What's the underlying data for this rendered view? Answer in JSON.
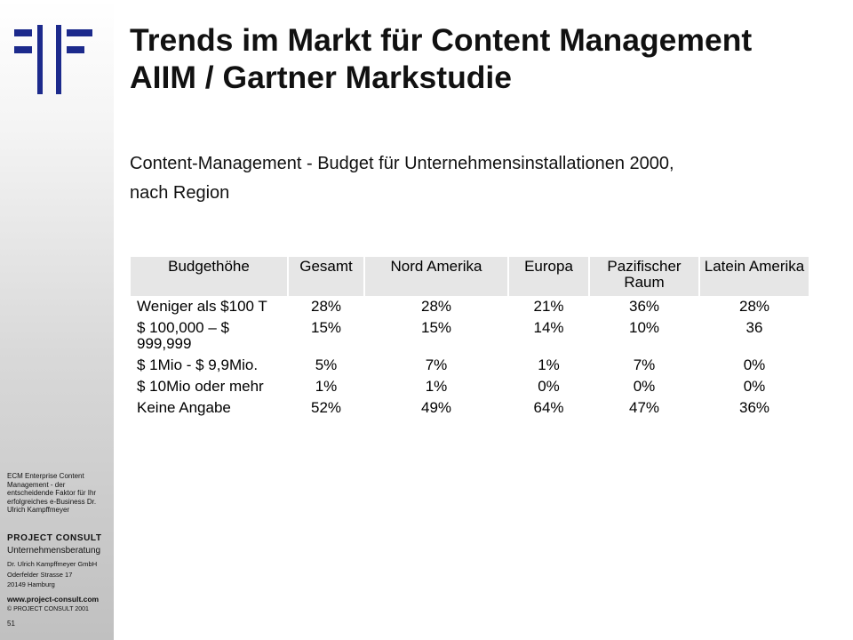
{
  "slide": {
    "title_line1": "Trends im Markt für Content Management",
    "title_line2": "AIIM / Gartner Markstudie",
    "subtitle_line1": "Content-Management - Budget für Unternehmensinstallationen 2000,",
    "subtitle_line2": "nach Region"
  },
  "table": {
    "headers": [
      "Budgethöhe",
      "Gesamt",
      "Nord Amerika",
      "Europa",
      "Pazifischer Raum",
      "Latein Amerika"
    ],
    "rows": [
      [
        "Weniger als $100 T",
        "28%",
        "28%",
        "21%",
        "36%",
        "28%"
      ],
      [
        "$ 100,000 – $ 999,999",
        "15%",
        "15%",
        "14%",
        "10%",
        "36"
      ],
      [
        "$ 1Mio - $ 9,9Mio.",
        "5%",
        "7%",
        "1%",
        "7%",
        "0%"
      ],
      [
        "$ 10Mio oder mehr",
        "1%",
        "1%",
        "0%",
        "0%",
        "0%"
      ],
      [
        "Keine Angabe",
        "52%",
        "49%",
        "64%",
        "47%",
        "36%"
      ]
    ]
  },
  "sidebar": {
    "description": "ECM Enterprise Content Management - der entscheidende Faktor für Ihr erfolgreiches e-Business Dr. Ulrich Kampffmeyer",
    "company": "PROJECT CONSULT",
    "company_sub": "Unternehmensberatung",
    "address_line1": "Dr. Ulrich Kampffmeyer GmbH",
    "address_line2": "Oderfelder Strasse 17",
    "address_line3": "20149 Hamburg",
    "website": "www.project-consult.com",
    "copyright": "© PROJECT CONSULT 2001",
    "page_number": "51"
  },
  "colors": {
    "logo_blue": "#1c2a8c",
    "header_gray": "#e6e6e6"
  },
  "icons": {
    "logo": "project-consult-logo"
  }
}
